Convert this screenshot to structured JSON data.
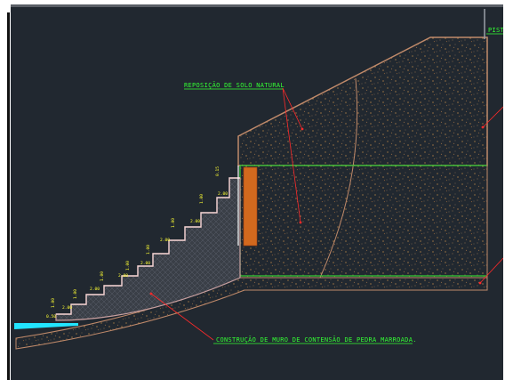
{
  "labels": {
    "reposicao": "REPOSIÇÃO DE SOLO NATURAL",
    "construcao": "CONSTRUÇÃO DE MURO DE CONTENSÃO DE PEDRA MARROADA.",
    "pista": "PISTA"
  },
  "dimensions": {
    "steps": [
      "0.50",
      "1.00",
      "2.00",
      "1.00",
      "2.00",
      "1.00",
      "2.00",
      "1.00",
      "2.00",
      "1.00",
      "2.00",
      "1.00",
      "2.00",
      "1.00",
      "2.00",
      "0.15"
    ]
  },
  "colors": {
    "background": "#212830",
    "soil_outline": "#c08a6a",
    "wall_fill": "#3a3f47",
    "green": "#33ff33",
    "red_leader": "#ff2a2a",
    "water": "#22e5ff",
    "post": "#d2691e"
  }
}
